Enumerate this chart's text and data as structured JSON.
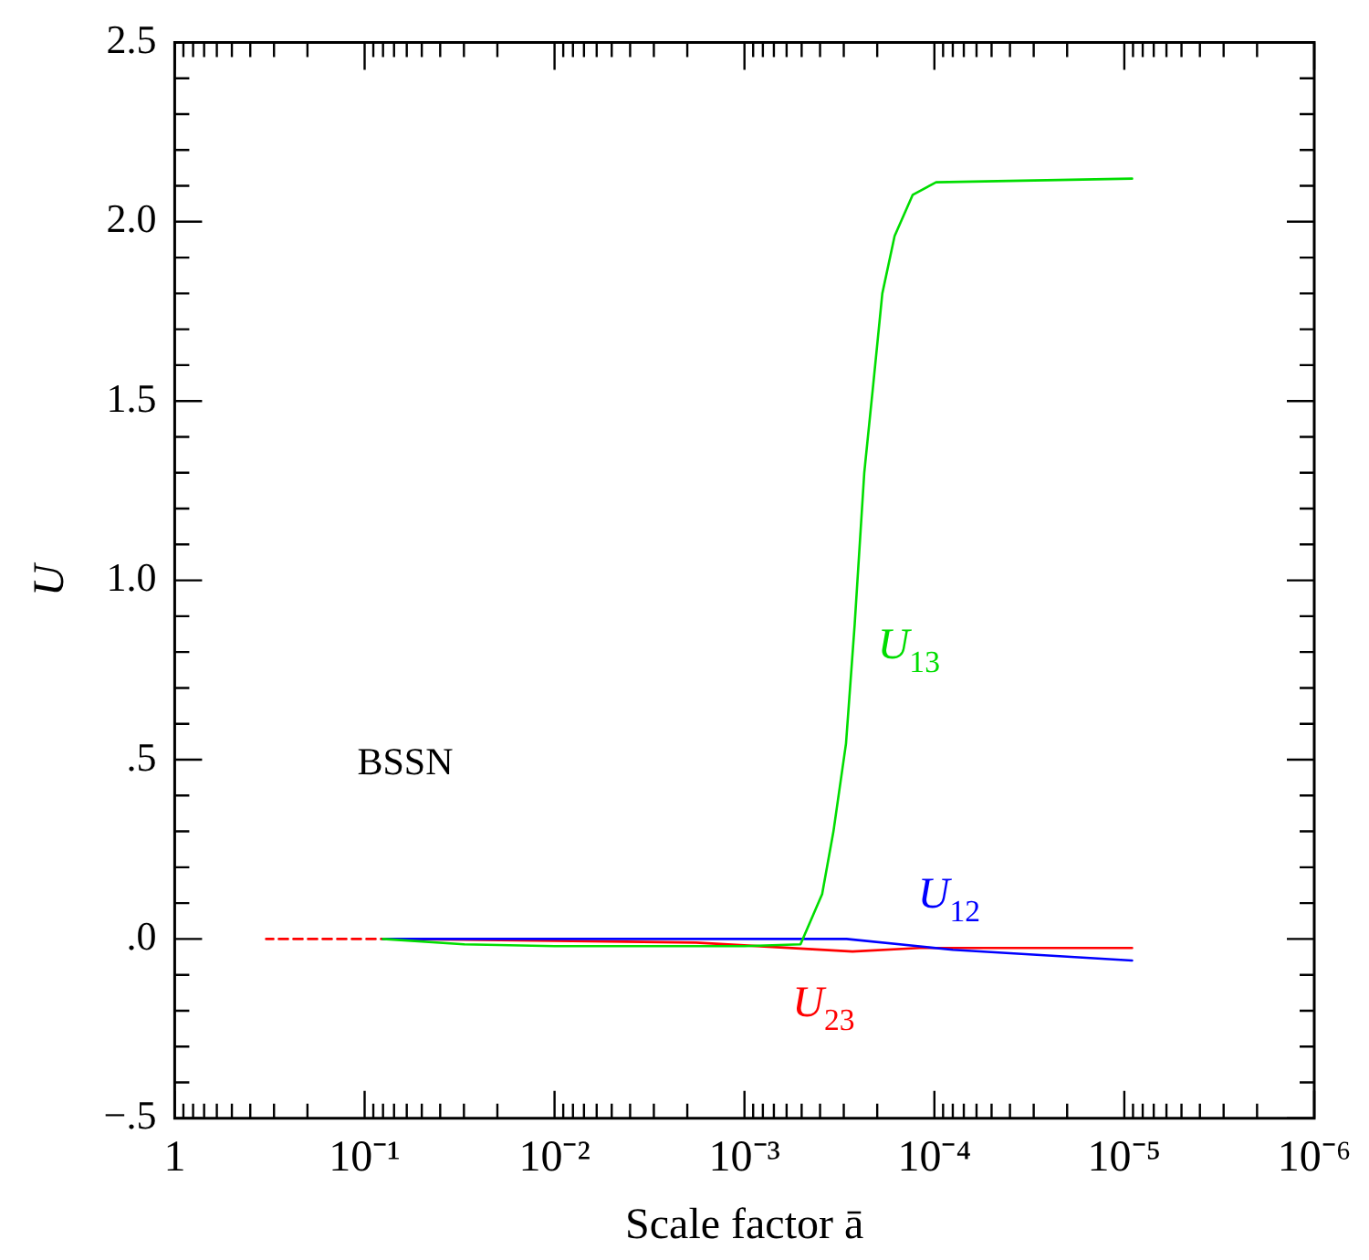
{
  "chart_data": {
    "type": "line",
    "xlabel": "Scale factor ā",
    "ylabel": "U",
    "annotations": [
      "BSSN"
    ],
    "log": "x",
    "grid": false,
    "legend": false,
    "marker": "none",
    "xlim": [
      1,
      1e-06
    ],
    "ylim": [
      -0.5,
      2.5
    ],
    "xticks": [
      1,
      {
        "value": 0.9,
        "label": null
      },
      {
        "value": 0.8,
        "label": null
      },
      {
        "value": 0.7,
        "label": null
      },
      {
        "value": 0.6,
        "label": null
      },
      {
        "value": 0.5,
        "label": null
      },
      {
        "value": 0.4,
        "label": null
      },
      {
        "value": 0.3,
        "label": null
      },
      {
        "value": 0.2,
        "label": null
      },
      {
        "value": 0.1,
        "label": "10⁻¹"
      },
      {
        "value": 0.09,
        "label": null
      },
      {
        "value": 0.08,
        "label": null
      },
      {
        "value": 0.07,
        "label": null
      },
      {
        "value": 0.06,
        "label": null
      },
      {
        "value": 0.05,
        "label": null
      },
      {
        "value": 0.04,
        "label": null
      },
      {
        "value": 0.03,
        "label": null
      },
      {
        "value": 0.02,
        "label": null
      },
      {
        "value": 0.01,
        "label": "10⁻²"
      },
      {
        "value": 0.009,
        "label": null
      },
      {
        "value": 0.008,
        "label": null
      },
      {
        "value": 0.007,
        "label": null
      },
      {
        "value": 0.006,
        "label": null
      },
      {
        "value": 0.005,
        "label": null
      },
      {
        "value": 0.004,
        "label": null
      },
      {
        "value": 0.003,
        "label": null
      },
      {
        "value": 0.002,
        "label": null
      },
      {
        "value": 0.001,
        "label": "10⁻³"
      },
      {
        "value": 0.0009,
        "label": null
      },
      {
        "value": 0.0008,
        "label": null
      },
      {
        "value": 0.0007,
        "label": null
      },
      {
        "value": 0.0006,
        "label": null
      },
      {
        "value": 0.0005,
        "label": null
      },
      {
        "value": 0.0004,
        "label": null
      },
      {
        "value": 0.0003,
        "label": null
      },
      {
        "value": 0.0002,
        "label": null
      },
      {
        "value": 0.0001,
        "label": "10⁻⁴"
      },
      {
        "value": 9e-05,
        "label": null
      },
      {
        "value": 8e-05,
        "label": null
      },
      {
        "value": 7e-05,
        "label": null
      },
      {
        "value": 6e-05,
        "label": null
      },
      {
        "value": 5e-05,
        "label": null
      },
      {
        "value": 4e-05,
        "label": null
      },
      {
        "value": 3e-05,
        "label": null
      },
      {
        "value": 2e-05,
        "label": null
      },
      {
        "value": 1e-05,
        "label": "10⁻⁵"
      },
      {
        "value": 9e-06,
        "label": null
      },
      {
        "value": 8e-06,
        "label": null
      },
      {
        "value": 7e-06,
        "label": null
      },
      {
        "value": 6e-06,
        "label": null
      },
      {
        "value": 5e-06,
        "label": null
      },
      {
        "value": 4e-06,
        "label": null
      },
      {
        "value": 3e-06,
        "label": null
      },
      {
        "value": 2e-06,
        "label": null
      },
      {
        "value": 1e-06,
        "label": "10⁻⁶"
      }
    ],
    "yticks": [
      {
        "value": -0.5,
        "label": "−.5"
      },
      {
        "value": -0.4,
        "label": null
      },
      {
        "value": -0.3,
        "label": null
      },
      {
        "value": -0.2,
        "label": null
      },
      {
        "value": -0.1,
        "label": null
      },
      {
        "value": 0,
        "label": ".0"
      },
      {
        "value": 0.1,
        "label": null
      },
      {
        "value": 0.2,
        "label": null
      },
      {
        "value": 0.3,
        "label": null
      },
      {
        "value": 0.4,
        "label": null
      },
      {
        "value": 0.5,
        "label": ".5"
      },
      {
        "value": 0.6,
        "label": null
      },
      {
        "value": 0.7,
        "label": null
      },
      {
        "value": 0.8,
        "label": null
      },
      {
        "value": 0.9,
        "label": null
      },
      {
        "value": 1,
        "label": "1.0"
      },
      {
        "value": 1.1,
        "label": null
      },
      {
        "value": 1.2,
        "label": null
      },
      {
        "value": 1.3,
        "label": null
      },
      {
        "value": 1.4,
        "label": null
      },
      {
        "value": 1.5,
        "label": "1.5"
      },
      {
        "value": 1.6,
        "label": null
      },
      {
        "value": 1.7,
        "label": null
      },
      {
        "value": 1.8,
        "label": null
      },
      {
        "value": 1.9,
        "label": null
      },
      {
        "value": 2,
        "label": "2.0"
      },
      {
        "value": 2.1,
        "label": null
      },
      {
        "value": 2.2,
        "label": null
      },
      {
        "value": 2.3,
        "label": null
      },
      {
        "value": 2.4,
        "label": null
      },
      {
        "value": 2.5,
        "label": "2.5"
      }
    ],
    "series": [
      {
        "name": "U$_{13}$",
        "color": "#00dd00",
        "line_style": "solid",
        "x": [
          0.08,
          0.03,
          0.01,
          0.001,
          0.000507,
          0.00039,
          0.00034,
          0.000292,
          0.000263,
          0.000234,
          0.00021,
          0.000188,
          0.000162,
          0.00013,
          9.8e-05,
          9.1e-06
        ],
        "values": [
          0,
          -0.015,
          -0.02,
          -0.02,
          -0.015,
          0.125,
          0.3,
          0.545,
          0.875,
          1.3,
          1.545,
          1.8,
          1.96,
          2.075,
          2.11,
          2.12
        ]
      },
      {
        "name": "U$_{12}$",
        "color": "#0000ff",
        "line_style": "solid",
        "x": [
          0.08,
          0.01,
          0.00029,
          8e-05,
          9.1e-06
        ],
        "values": [
          0,
          0,
          0,
          -0.03,
          -0.06
        ]
      },
      {
        "name": "U$_{23}$",
        "color": "#ff0000",
        "line_style": "solid",
        "x": [
          0.075,
          0.01,
          0.0018,
          0.00027,
          0.00012,
          9.1e-06
        ],
        "values": [
          0,
          -0.005,
          -0.01,
          -0.035,
          -0.025,
          -0.025
        ]
      },
      {
        "color": "#ff0000",
        "line_style": "dashed",
        "x": [
          0.33,
          0.075
        ],
        "values": [
          0,
          0
        ]
      }
    ]
  }
}
